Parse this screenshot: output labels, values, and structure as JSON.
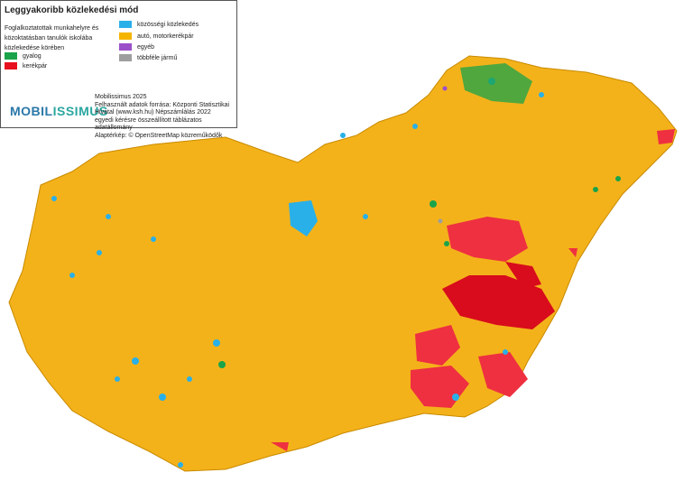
{
  "legend": {
    "title": "Leggyakoribb közlekedési mód",
    "description": "Foglalkoztatottak munkahelyre és közoktatásban tanulók iskolába közlekedése körében",
    "items": [
      {
        "label": "gyalog",
        "color": "#1aa34a"
      },
      {
        "label": "kerékpár",
        "color": "#e8101e"
      },
      {
        "label": "közösségi közlekedés",
        "color": "#2ab0e8"
      },
      {
        "label": "autó, motorkerékpár",
        "color": "#f5b400"
      },
      {
        "label": "egyéb",
        "color": "#9b4fc9"
      },
      {
        "label": "többféle jármű",
        "color": "#9e9e9e"
      }
    ]
  },
  "logo": {
    "text_a": "MOBIL",
    "text_b": "ISSIMUS"
  },
  "credits": [
    "Mobilissimus 2025",
    "Felhasznált adatok forrása: Központi Statisztikai",
    "Hivatal (www.ksh.hu) Népszámlálás 2022",
    "egyedi kérésre összeállított táblázatos adatállomány",
    "Alaptérkép: © OpenStreetMap közreműködők"
  ]
}
